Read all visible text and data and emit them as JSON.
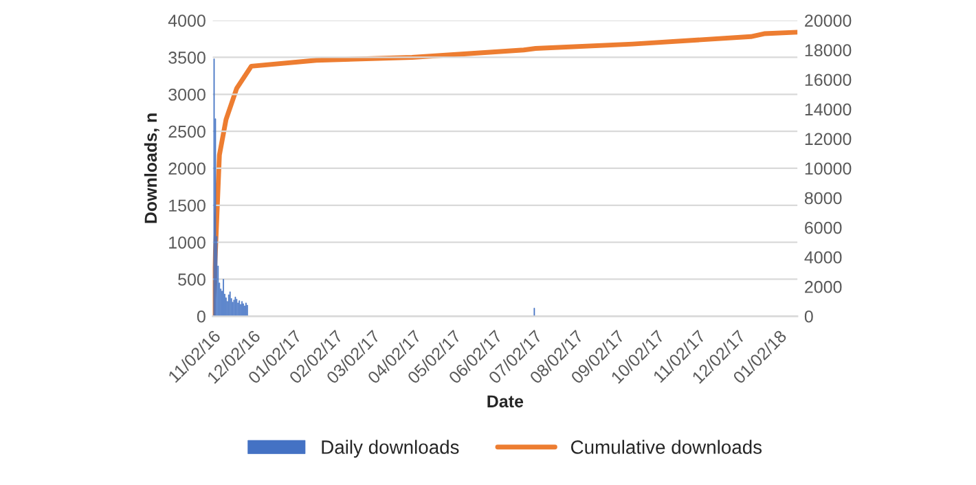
{
  "chart_data": {
    "type": "bar",
    "xlabel": "Date",
    "ylabel": "Downloads, n",
    "xlim": [
      "2016-11-02",
      "2018-01-16"
    ],
    "xticks": [
      {
        "value": "2016-11-02",
        "label": "11/02/16"
      },
      {
        "value": "2016-12-02",
        "label": "12/02/16"
      },
      {
        "value": "2017-01-02",
        "label": "01/02/17"
      },
      {
        "value": "2017-02-02",
        "label": "02/02/17"
      },
      {
        "value": "2017-03-02",
        "label": "03/02/17"
      },
      {
        "value": "2017-04-02",
        "label": "04/02/17"
      },
      {
        "value": "2017-05-02",
        "label": "05/02/17"
      },
      {
        "value": "2017-06-02",
        "label": "06/02/17"
      },
      {
        "value": "2017-07-02",
        "label": "07/02/17"
      },
      {
        "value": "2017-08-02",
        "label": "08/02/17"
      },
      {
        "value": "2017-09-02",
        "label": "09/02/17"
      },
      {
        "value": "2017-10-02",
        "label": "10/02/17"
      },
      {
        "value": "2017-11-02",
        "label": "11/02/17"
      },
      {
        "value": "2017-12-02",
        "label": "12/02/17"
      },
      {
        "value": "2018-01-02",
        "label": "01/02/18"
      }
    ],
    "ylim": [
      0,
      4000
    ],
    "yticks": [
      0,
      500,
      1000,
      1500,
      2000,
      2500,
      3000,
      3500,
      4000
    ],
    "y2lim": [
      0,
      20000
    ],
    "y2ticks": [
      0,
      2000,
      4000,
      6000,
      8000,
      10000,
      12000,
      14000,
      16000,
      18000,
      20000
    ],
    "grid": "y",
    "legend": "bottom",
    "series": [
      {
        "name": "Daily downloads",
        "type": "bar",
        "color": "#4472c4",
        "x": [
          "2016-11-03",
          "2016-11-04",
          "2016-11-05",
          "2016-11-06",
          "2016-11-07",
          "2016-11-08",
          "2016-11-09",
          "2016-11-10",
          "2016-11-11",
          "2016-11-12",
          "2016-11-13",
          "2016-11-14",
          "2016-11-15",
          "2016-11-16",
          "2016-11-17",
          "2016-11-18",
          "2016-11-19",
          "2016-11-20",
          "2016-11-21",
          "2016-11-22",
          "2016-11-23",
          "2016-11-24",
          "2016-11-25",
          "2016-11-26",
          "2016-11-27",
          "2016-11-28",
          "2017-07-02"
        ],
        "values": [
          3480,
          2670,
          1080,
          680,
          450,
          370,
          340,
          500,
          300,
          250,
          200,
          290,
          330,
          240,
          190,
          220,
          260,
          230,
          180,
          210,
          160,
          200,
          170,
          140,
          180,
          150,
          110
        ]
      },
      {
        "name": "Cumulative downloads",
        "type": "line",
        "axis": "y2",
        "color": "#ed7d31",
        "x": [
          "2016-11-02",
          "2016-11-07",
          "2016-11-12",
          "2016-11-20",
          "2016-12-01",
          "2017-01-19",
          "2017-04-01",
          "2017-06-24",
          "2017-07-03",
          "2017-09-14",
          "2017-12-12",
          "2017-12-22",
          "2018-01-16"
        ],
        "values": [
          0,
          10900,
          13300,
          15400,
          16900,
          17300,
          17500,
          18000,
          18100,
          18400,
          18900,
          19100,
          19200
        ]
      }
    ]
  }
}
